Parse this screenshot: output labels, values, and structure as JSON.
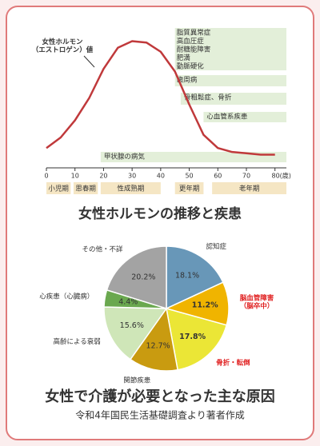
{
  "chart_data": [
    {
      "type": "line",
      "annotation": "女性ホルモン\n（エストロゲン）値",
      "title": "女性ホルモンの推移と疾患",
      "x": [
        0,
        5,
        10,
        15,
        20,
        25,
        30,
        35,
        40,
        45,
        50,
        55,
        60,
        65,
        70,
        75,
        80
      ],
      "series": [
        {
          "color": "#c0393b",
          "values": [
            12,
            20,
            33,
            50,
            72,
            88,
            93,
            92,
            85,
            70,
            45,
            22,
            12,
            9,
            8,
            7,
            7
          ]
        }
      ],
      "xlim": [
        0,
        84
      ],
      "xticks": [
        0,
        10,
        20,
        30,
        40,
        50,
        60,
        70,
        {
          "value": 80,
          "label": "80(歳)"
        }
      ],
      "ylim": [
        0,
        100
      ],
      "bands": [
        {
          "labels": [
            "脂質異常症",
            "高血圧症",
            "耐糖能障害",
            "肥満",
            "動脈硬化"
          ],
          "start": 45,
          "end": 84
        },
        {
          "labels": [
            "歯周病"
          ],
          "start": 45,
          "end": 84
        },
        {
          "labels": [
            "骨粗鬆症、骨折"
          ],
          "start": 47,
          "end": 84
        },
        {
          "labels": [
            "心血管系疾患"
          ],
          "start": 55,
          "end": 84
        },
        {
          "labels": [
            "甲状腺の病気"
          ],
          "start": 19,
          "end": 84
        }
      ],
      "stages": [
        {
          "label": "小児期",
          "start": 0,
          "end": 8.5
        },
        {
          "label": "思春期",
          "start": 9.5,
          "end": 18
        },
        {
          "label": "性成熟期",
          "start": 19,
          "end": 40
        },
        {
          "label": "更年期",
          "start": 45,
          "end": 55
        },
        {
          "label": "老年期",
          "start": 58,
          "end": 84
        }
      ]
    },
    {
      "type": "pie",
      "title": "女性で介護が必要となった主な原因",
      "subtitle": "令和4年国民生活基礎調査より著者作成",
      "categories": [
        "認知症",
        "脳血管障害\n（脳卒中）",
        "骨折・転倒",
        "関節疾患",
        "高齢による衰弱",
        "心疾患（心臓病）",
        "その他・不詳"
      ],
      "values": [
        18.1,
        11.2,
        17.8,
        12.7,
        15.6,
        4.4,
        20.2
      ],
      "value_labels": [
        "18.1%",
        "11.2%",
        "17.8%",
        "12.7%",
        "15.6%",
        "4.4%",
        "20.2%"
      ],
      "colors": [
        "#6897b8",
        "#f0b400",
        "#ebe636",
        "#c99b10",
        "#cfe6b8",
        "#6aa84f",
        "#a3a3a3"
      ],
      "label_colors": [
        "#333333",
        "#e02020",
        "#e02020",
        "#333333",
        "#333333",
        "#333333",
        "#333333"
      ]
    }
  ]
}
